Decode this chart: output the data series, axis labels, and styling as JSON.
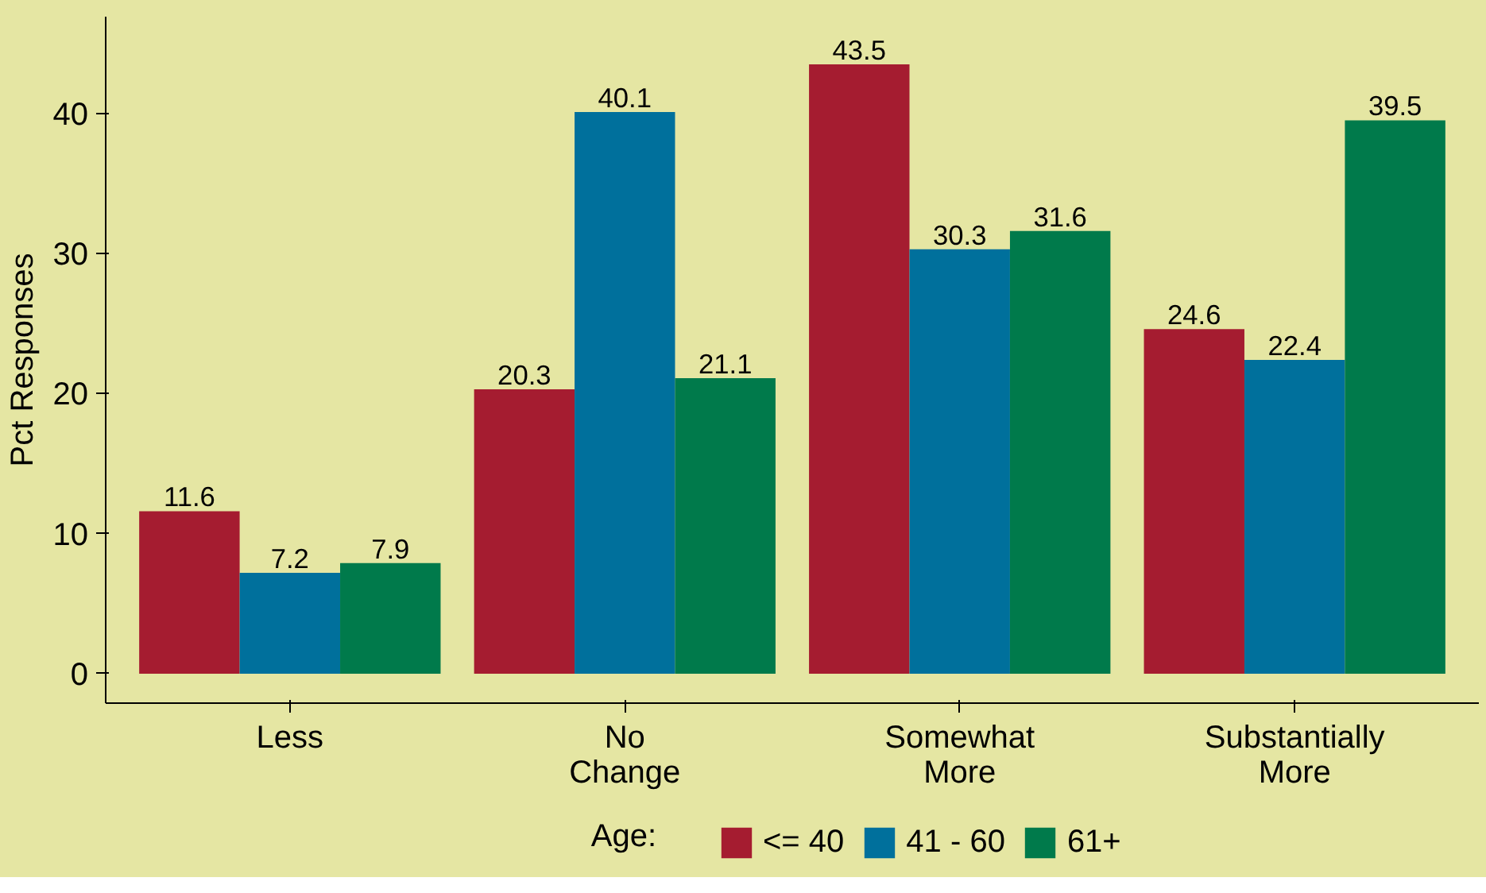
{
  "chart_data": {
    "type": "bar",
    "ylabel": "Pct Responses",
    "legend_title": "Age:",
    "categories": [
      "Less",
      "No\nChange",
      "Somewhat\nMore",
      "Substantially\nMore"
    ],
    "series": [
      {
        "name": "<= 40",
        "color": "#a51c30",
        "values": [
          11.6,
          20.3,
          43.5,
          24.6
        ]
      },
      {
        "name": "41 - 60",
        "color": "#00709c",
        "values": [
          7.2,
          40.1,
          30.3,
          22.4
        ]
      },
      {
        "name": "61+",
        "color": "#007a4b",
        "values": [
          7.9,
          21.1,
          31.6,
          39.5
        ]
      }
    ],
    "ylim": [
      -2.1,
      46.9
    ],
    "yticks": [
      0,
      10,
      20,
      30,
      40
    ],
    "grid": false,
    "legend": "bottom",
    "data_labels": true
  }
}
